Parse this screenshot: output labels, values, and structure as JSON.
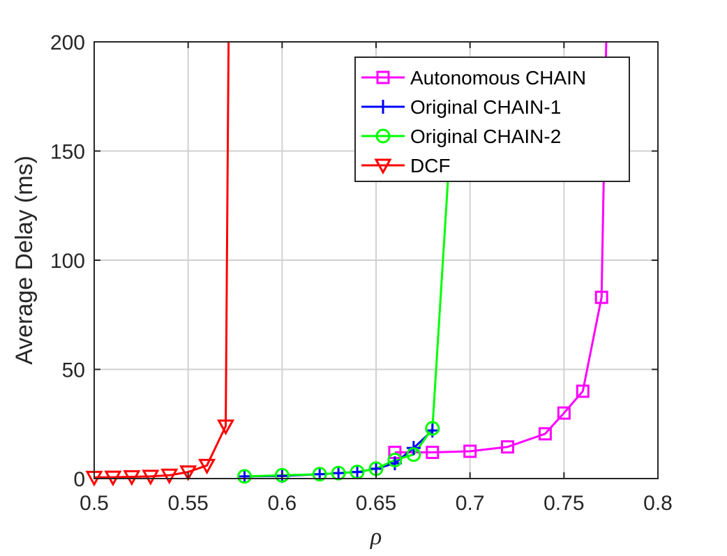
{
  "chart_data": {
    "type": "line",
    "title": "",
    "xlabel": "ρ",
    "ylabel": "Average Delay (ms)",
    "xlim": [
      0.5,
      0.8
    ],
    "ylim": [
      0,
      200
    ],
    "xticks": [
      0.5,
      0.55,
      0.6,
      0.65,
      0.7,
      0.75,
      0.8
    ],
    "xtick_labels": [
      "0.5",
      "0.55",
      "0.6",
      "0.65",
      "0.7",
      "0.75",
      "0.8"
    ],
    "yticks": [
      0,
      50,
      100,
      150,
      200
    ],
    "ytick_labels": [
      "0",
      "50",
      "100",
      "150",
      "200"
    ],
    "grid": true,
    "legend_position": "top-right",
    "series": [
      {
        "name": "Autonomous CHAIN",
        "color": "#ff00ff",
        "marker": "square",
        "x": [
          0.66,
          0.68,
          0.7,
          0.72,
          0.74,
          0.75,
          0.76,
          0.77,
          0.7725
        ],
        "y": [
          12,
          12,
          12.5,
          14.5,
          20.5,
          30,
          40,
          83,
          200
        ]
      },
      {
        "name": "Original CHAIN-1",
        "color": "#0000ff",
        "marker": "plus",
        "x": [
          0.58,
          0.6,
          0.62,
          0.63,
          0.64,
          0.65,
          0.66,
          0.67,
          0.68
        ],
        "y": [
          1,
          1.2,
          2,
          2.5,
          3,
          4.5,
          7,
          14,
          22
        ]
      },
      {
        "name": "Original CHAIN-2",
        "color": "#00ff00",
        "marker": "circle",
        "x": [
          0.58,
          0.6,
          0.62,
          0.63,
          0.64,
          0.65,
          0.66,
          0.67,
          0.68,
          0.6885
        ],
        "y": [
          1,
          1.5,
          2,
          2.5,
          3,
          4.5,
          8.5,
          11,
          23,
          140
        ]
      },
      {
        "name": "DCF",
        "color": "#ff0000",
        "marker": "triangle-down",
        "x": [
          0.5,
          0.51,
          0.52,
          0.53,
          0.54,
          0.55,
          0.56,
          0.57,
          0.5715
        ],
        "y": [
          0.5,
          0.6,
          0.8,
          1,
          1.5,
          3,
          6,
          24,
          200
        ]
      }
    ]
  }
}
